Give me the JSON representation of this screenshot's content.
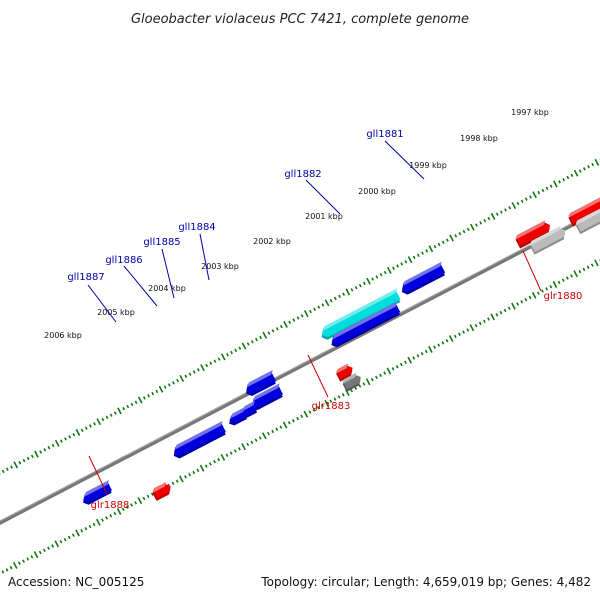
{
  "header": {
    "title": "Gloeobacter violaceus PCC 7421, complete genome"
  },
  "footer": {
    "accession": "Accession: NC_005125",
    "topology": "Topology: circular; Length: 4,659,019 bp; Genes: 4,482"
  },
  "colors": {
    "forward_gene": "#0000dd",
    "reverse_gene": "#ee0000",
    "highlight_gene": "#00dddd",
    "pseudo_gene": "#777777",
    "pseudo_gene_light": "#bbbbbb",
    "backbone": "#777777",
    "tick": "#117711",
    "forward_label": "#0000aa",
    "reverse_label": "#cc0000"
  },
  "kbp_ticks": [
    "2006 kbp",
    "2005 kbp",
    "2004 kbp",
    "2003 kbp",
    "2002 kbp",
    "2001 kbp",
    "2000 kbp",
    "1999 kbp",
    "1998 kbp",
    "1997 kbp"
  ],
  "gene_labels": {
    "gll1881": "gll1881",
    "gll1882": "gll1882",
    "gll1884": "gll1884",
    "gll1885": "gll1885",
    "gll1886": "gll1886",
    "gll1887": "gll1887",
    "glr1880": "glr1880",
    "glr1883": "glr1883",
    "glr1888": "glr1888"
  }
}
